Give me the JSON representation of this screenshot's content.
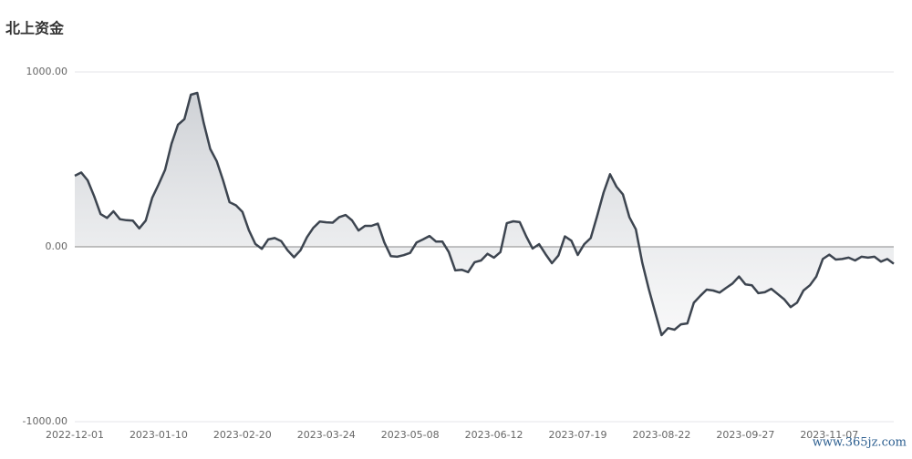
{
  "chart_data": {
    "type": "line",
    "title": "北上资金",
    "categories": [
      "2022-12-01",
      null,
      null,
      null,
      null,
      null,
      null,
      null,
      null,
      null,
      null,
      null,
      null,
      "2023-01-10",
      null,
      null,
      null,
      null,
      null,
      null,
      null,
      null,
      null,
      null,
      null,
      null,
      "2023-02-20",
      null,
      null,
      null,
      null,
      null,
      null,
      null,
      null,
      null,
      null,
      null,
      null,
      "2023-03-24",
      null,
      null,
      null,
      null,
      null,
      null,
      null,
      null,
      null,
      null,
      null,
      null,
      "2023-05-08",
      null,
      null,
      null,
      null,
      null,
      null,
      null,
      null,
      null,
      null,
      null,
      null,
      "2023-06-12",
      null,
      null,
      null,
      null,
      null,
      null,
      null,
      null,
      null,
      null,
      null,
      null,
      "2023-07-19",
      null,
      null,
      null,
      null,
      null,
      null,
      null,
      null,
      null,
      null,
      null,
      null,
      "2023-08-22",
      null,
      null,
      null,
      null,
      null,
      null,
      null,
      null,
      null,
      null,
      null,
      null,
      "2023-09-27",
      null,
      null,
      null,
      null,
      null,
      null,
      null,
      null,
      null,
      null,
      null,
      null,
      "2023-11-07",
      null,
      null,
      null,
      null,
      null,
      null,
      null,
      null,
      null,
      null
    ],
    "series": [
      {
        "color": "#3d4550",
        "values": [
          406,
          425,
          380,
          290,
          187,
          165,
          203,
          158,
          152,
          150,
          105,
          150,
          280,
          357,
          440,
          590,
          698,
          730,
          870,
          880,
          708,
          560,
          490,
          380,
          255,
          237,
          200,
          95,
          16,
          -12,
          42,
          50,
          33,
          -20,
          -60,
          -20,
          55,
          109,
          145,
          140,
          138,
          170,
          182,
          151,
          93,
          120,
          120,
          133,
          25,
          -53,
          -57,
          -48,
          -35,
          25,
          42,
          62,
          30,
          30,
          -30,
          -135,
          -131,
          -145,
          -88,
          -78,
          -40,
          -62,
          -30,
          135,
          146,
          141,
          60,
          -10,
          15,
          -42,
          -94,
          -50,
          60,
          35,
          -47,
          15,
          50,
          175,
          310,
          415,
          344,
          300,
          170,
          100,
          -90,
          -240,
          -375,
          -505,
          -465,
          -474,
          -443,
          -438,
          -320,
          -280,
          -245,
          -250,
          -262,
          -235,
          -210,
          -170,
          -215,
          -220,
          -265,
          -260,
          -240,
          -270,
          -300,
          -345,
          -320,
          -250,
          -220,
          -170,
          -70,
          -45,
          -73,
          -70,
          -62,
          -78,
          -57,
          -62,
          -57,
          -85,
          -70,
          -97
        ]
      }
    ],
    "ylim": [
      -1000,
      1000
    ],
    "yticks": [
      {
        "value": -1000,
        "label": "-1000.00"
      },
      {
        "value": 0,
        "label": "0.00"
      },
      {
        "value": 1000,
        "label": "1000.00"
      }
    ],
    "grid": true,
    "watermark": "www.365jz.com"
  }
}
